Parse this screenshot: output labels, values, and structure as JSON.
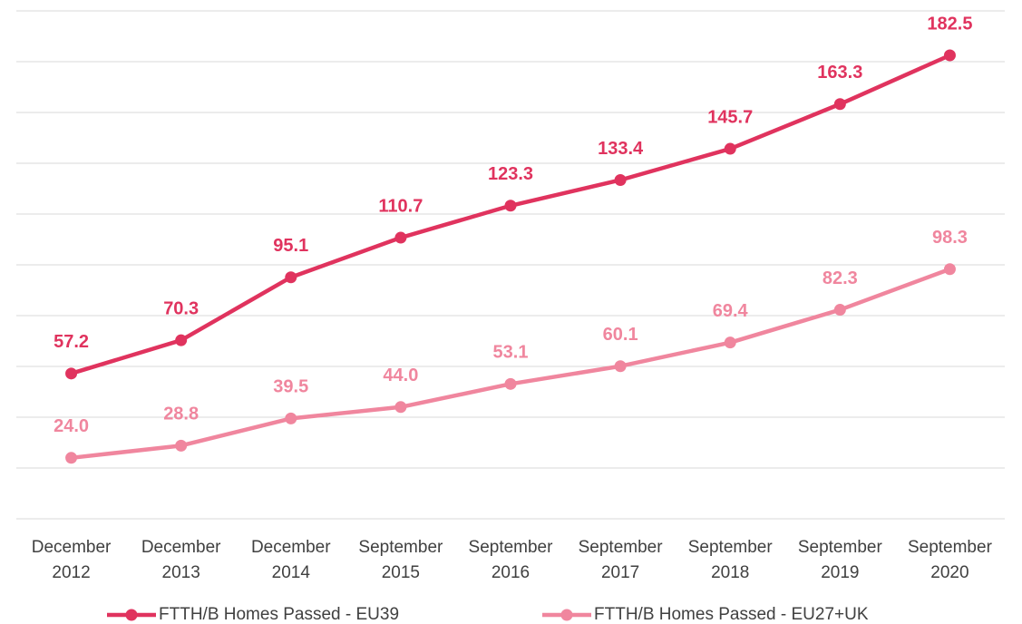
{
  "chart_data": {
    "type": "line",
    "categories": [
      "December 2012",
      "December 2013",
      "December 2014",
      "September 2015",
      "September 2016",
      "September 2017",
      "September 2018",
      "September 2019",
      "September 2020"
    ],
    "series": [
      {
        "name": "FTTH/B Homes Passed - EU39",
        "color": "#e0335e",
        "values": [
          57.2,
          70.3,
          95.1,
          110.7,
          123.3,
          133.4,
          145.7,
          163.3,
          182.5
        ],
        "value_labels": [
          "57.2",
          "70.3",
          "95.1",
          "110.7",
          "123.3",
          "133.4",
          "145.7",
          "163.3",
          "182.5"
        ]
      },
      {
        "name": "FTTH/B Homes Passed - EU27+UK",
        "color": "#f0869e",
        "values": [
          24.0,
          28.8,
          39.5,
          44.0,
          53.1,
          60.1,
          69.4,
          82.3,
          98.3
        ],
        "value_labels": [
          "24.0",
          "28.8",
          "39.5",
          "44.0",
          "53.1",
          "60.1",
          "69.4",
          "82.3",
          "98.3"
        ]
      }
    ],
    "ylim": [
      0,
      200
    ],
    "yticks": [
      0,
      20,
      40,
      60,
      80,
      100,
      120,
      140,
      160,
      180,
      200
    ],
    "grid": true
  }
}
